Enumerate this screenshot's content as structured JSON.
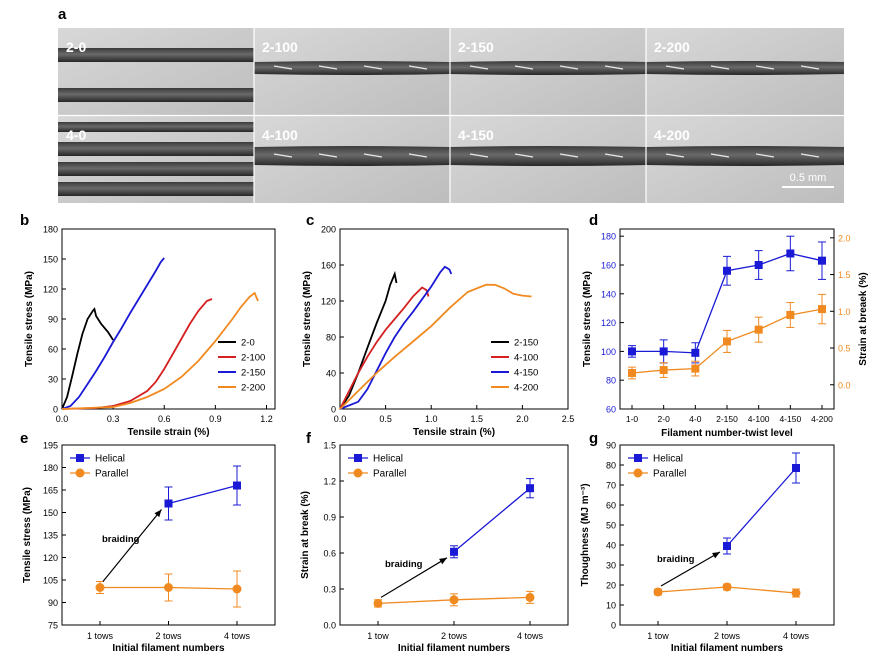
{
  "panel_labels": {
    "a": "a",
    "b": "b",
    "c": "c",
    "d": "d",
    "e": "e",
    "f": "f",
    "g": "g"
  },
  "micrographs": {
    "tiles": [
      "2-0",
      "2-100",
      "2-150",
      "2-200",
      "4-0",
      "4-100",
      "4-150",
      "4-200"
    ],
    "scale_bar": "0.5 mm"
  },
  "chart_data": [
    {
      "id": "b",
      "type": "line",
      "xlabel": "Tensile strain (%)",
      "ylabel": "Tensile stress (MPa)",
      "xlim": [
        0,
        1.25
      ],
      "ylim": [
        0,
        180
      ],
      "xticks": [
        "0.0",
        "0.3",
        "0.6",
        "0.9",
        "1.2"
      ],
      "yticks": [
        "0",
        "30",
        "60",
        "90",
        "120",
        "150",
        "180"
      ],
      "legend_position": "right",
      "series": [
        {
          "name": "2-0",
          "color": "#000000",
          "x": [
            0,
            0.03,
            0.06,
            0.09,
            0.12,
            0.15,
            0.18,
            0.19,
            0.2,
            0.23,
            0.27,
            0.3
          ],
          "y": [
            0,
            12,
            33,
            55,
            75,
            90,
            98,
            100,
            93,
            85,
            77,
            69
          ]
        },
        {
          "name": "2-100",
          "color": "#d42020",
          "x": [
            0,
            0.2,
            0.3,
            0.4,
            0.5,
            0.55,
            0.6,
            0.65,
            0.7,
            0.75,
            0.8,
            0.85,
            0.88
          ],
          "y": [
            0,
            1,
            3,
            8,
            18,
            27,
            40,
            55,
            70,
            85,
            98,
            108,
            110
          ]
        },
        {
          "name": "2-150",
          "color": "#1a1ad6",
          "x": [
            0,
            0.05,
            0.1,
            0.15,
            0.2,
            0.25,
            0.3,
            0.35,
            0.4,
            0.45,
            0.5,
            0.55,
            0.58,
            0.6
          ],
          "y": [
            0,
            3,
            12,
            25,
            38,
            52,
            67,
            81,
            96,
            110,
            124,
            138,
            147,
            151
          ]
        },
        {
          "name": "2-200",
          "color": "#f08a20",
          "x": [
            0,
            0.3,
            0.4,
            0.5,
            0.6,
            0.7,
            0.8,
            0.9,
            1.0,
            1.05,
            1.1,
            1.13,
            1.15
          ],
          "y": [
            0,
            2,
            6,
            12,
            20,
            32,
            48,
            68,
            90,
            102,
            112,
            116,
            108
          ]
        }
      ]
    },
    {
      "id": "c",
      "type": "line",
      "xlabel": "Tensile strain (%)",
      "ylabel": "Tensile stress (MPa)",
      "xlim": [
        0,
        2.5
      ],
      "ylim": [
        0,
        200
      ],
      "xticks": [
        "0.0",
        "0.5",
        "1.0",
        "1.5",
        "2.0",
        "2.5"
      ],
      "yticks": [
        "0",
        "40",
        "80",
        "120",
        "160",
        "200"
      ],
      "legend_position": "right",
      "series": [
        {
          "name": "2-150",
          "color": "#000000",
          "x": [
            0,
            0.1,
            0.2,
            0.3,
            0.4,
            0.5,
            0.55,
            0.6,
            0.62
          ],
          "y": [
            0,
            15,
            40,
            68,
            95,
            120,
            138,
            150,
            140
          ]
        },
        {
          "name": "4-100",
          "color": "#d42020",
          "x": [
            0,
            0.1,
            0.2,
            0.3,
            0.4,
            0.5,
            0.6,
            0.7,
            0.8,
            0.9,
            0.95,
            0.97
          ],
          "y": [
            0,
            20,
            40,
            58,
            74,
            88,
            100,
            112,
            125,
            135,
            132,
            125
          ]
        },
        {
          "name": "4-150",
          "color": "#1a1ad6",
          "x": [
            0,
            0.2,
            0.3,
            0.4,
            0.5,
            0.6,
            0.7,
            0.8,
            0.9,
            1.0,
            1.1,
            1.15,
            1.2,
            1.22
          ],
          "y": [
            0,
            8,
            22,
            42,
            62,
            80,
            95,
            108,
            122,
            136,
            152,
            158,
            155,
            150
          ]
        },
        {
          "name": "4-200",
          "color": "#f08a20",
          "x": [
            0,
            0.2,
            0.4,
            0.6,
            0.8,
            1.0,
            1.2,
            1.4,
            1.6,
            1.7,
            1.8,
            1.9,
            2.0,
            2.1
          ],
          "y": [
            0,
            20,
            40,
            58,
            75,
            92,
            112,
            130,
            138,
            138,
            134,
            128,
            126,
            125
          ]
        }
      ]
    },
    {
      "id": "d",
      "type": "line",
      "xlabel": "Filament number-twist level",
      "ylabel": "Tensile stress (MPa)",
      "ylabel_right": "Strain at breaek (%)",
      "categories": [
        "1-0",
        "2-0",
        "4-0",
        "2-150",
        "4-100",
        "4-150",
        "4-200"
      ],
      "ylim": [
        60,
        185
      ],
      "y2lim": [
        -0.33,
        2.12
      ],
      "yticks": [
        "60",
        "70",
        "80",
        "90",
        "100",
        "110",
        "120",
        "130",
        "140",
        "150",
        "160",
        "170",
        "180"
      ],
      "y2ticks": [
        "0.0",
        "0.5",
        "1.0",
        "1.5",
        "2.0"
      ],
      "series": [
        {
          "name": "Tensile stress",
          "axis": "left",
          "color": "#1a1ad6",
          "values": [
            100,
            100,
            99,
            156,
            160,
            168,
            163
          ],
          "error": [
            4,
            8,
            7,
            10,
            10,
            12,
            13
          ]
        },
        {
          "name": "Strain at break",
          "axis": "right",
          "color": "#f08a20",
          "values": [
            0.16,
            0.2,
            0.22,
            0.59,
            0.75,
            0.95,
            1.03
          ],
          "error": [
            0.08,
            0.1,
            0.1,
            0.15,
            0.17,
            0.17,
            0.2
          ]
        }
      ]
    },
    {
      "id": "e",
      "type": "line",
      "xlabel": "Initial filament numbers",
      "ylabel": "Tensile stress (MPa)",
      "categories": [
        "1 tows",
        "2 tows",
        "4 tows"
      ],
      "ylim": [
        75,
        195
      ],
      "yticks": [
        "75",
        "90",
        "105",
        "120",
        "135",
        "150",
        "165",
        "180",
        "195"
      ],
      "annotation": "braiding",
      "legend_position": "top-left",
      "series": [
        {
          "name": "Helical",
          "color": "#1a1ad6",
          "points": [
            [
              1,
              156
            ],
            [
              2,
              168
            ]
          ],
          "error": [
            11,
            13
          ]
        },
        {
          "name": "Parallel",
          "color": "#f08a20",
          "points": [
            [
              0,
              100
            ],
            [
              1,
              100
            ],
            [
              2,
              99
            ]
          ],
          "error": [
            4,
            9,
            12
          ]
        }
      ]
    },
    {
      "id": "f",
      "type": "line",
      "xlabel": "Initial filament numbers",
      "ylabel": "Strain at break (%)",
      "categories": [
        "1 tow",
        "2 tows",
        "4 tows"
      ],
      "ylim": [
        0,
        1.5
      ],
      "yticks": [
        "0.0",
        "0.3",
        "0.6",
        "0.9",
        "1.2",
        "1.5"
      ],
      "annotation": "braiding",
      "legend_position": "top-left",
      "series": [
        {
          "name": "Helical",
          "color": "#1a1ad6",
          "points": [
            [
              1,
              0.61
            ],
            [
              2,
              1.14
            ]
          ],
          "error": [
            0.05,
            0.08
          ]
        },
        {
          "name": "Parallel",
          "color": "#f08a20",
          "points": [
            [
              0,
              0.18
            ],
            [
              1,
              0.21
            ],
            [
              2,
              0.23
            ]
          ],
          "error": [
            0.03,
            0.05,
            0.05
          ]
        }
      ]
    },
    {
      "id": "g",
      "type": "line",
      "xlabel": "Initial filament numbers",
      "ylabel": "Thoughness (MJ m⁻³)",
      "categories": [
        "1 tow",
        "2 tows",
        "4 tows"
      ],
      "ylim": [
        0,
        90
      ],
      "yticks": [
        "0",
        "10",
        "20",
        "30",
        "40",
        "50",
        "60",
        "70",
        "80",
        "90"
      ],
      "annotation": "braiding",
      "legend_position": "top-left",
      "series": [
        {
          "name": "Helical",
          "color": "#1a1ad6",
          "points": [
            [
              1,
              39.5
            ],
            [
              2,
              78.5
            ]
          ],
          "error": [
            4,
            7.5
          ]
        },
        {
          "name": "Parallel",
          "color": "#f08a20",
          "points": [
            [
              0,
              16.5
            ],
            [
              1,
              19
            ],
            [
              2,
              16
            ]
          ],
          "error": [
            1.5,
            1.5,
            2
          ]
        }
      ]
    }
  ]
}
